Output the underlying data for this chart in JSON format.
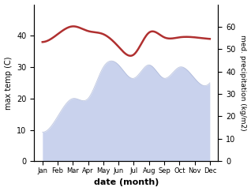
{
  "months": [
    "Jan",
    "Feb",
    "Mar",
    "Apr",
    "May",
    "Jun",
    "Jul",
    "Aug",
    "Sep",
    "Oct",
    "Nov",
    "Dec"
  ],
  "temp": [
    38.0,
    40.5,
    43.0,
    41.5,
    40.5,
    36.5,
    34.0,
    41.0,
    39.5,
    39.5,
    39.5,
    39.0
  ],
  "precip": [
    13,
    20,
    28,
    28,
    42,
    43,
    37,
    43,
    37,
    42,
    37,
    35
  ],
  "temp_color": "#b03030",
  "precip_fill_color": "#b8c4e8",
  "precip_line_color": "#8090c0",
  "ylabel_left": "max temp (C)",
  "ylabel_right": "med. precipitation (kg/m2)",
  "xlabel": "date (month)",
  "ylim_left": [
    0,
    50
  ],
  "ylim_right": [
    0,
    70
  ],
  "yticks_left": [
    0,
    10,
    20,
    30,
    40
  ],
  "yticks_right": [
    0,
    10,
    20,
    30,
    40,
    50,
    60
  ],
  "bg_color": "#ffffff",
  "temp_linewidth": 1.8,
  "precip_alpha": 0.75
}
